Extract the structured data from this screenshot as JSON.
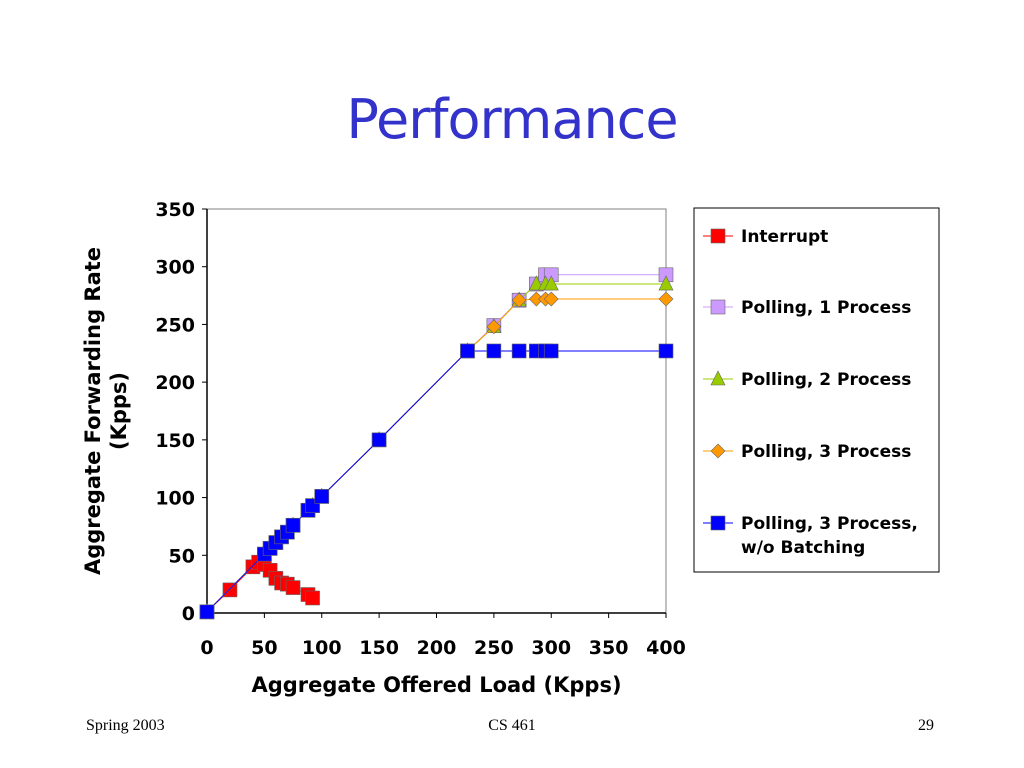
{
  "slide": {
    "title": "Performance",
    "footer_left": "Spring 2003",
    "footer_center": "CS 461",
    "footer_right": "29"
  },
  "chart_data": {
    "type": "line",
    "title": "",
    "xlabel": "Aggregate Offered Load (Kpps)",
    "ylabel": "Aggregate Forwarding Rate (Kpps)",
    "ylabel_lines": [
      "Aggregate Forwarding Rate",
      "(Kpps)"
    ],
    "xlim": [
      0,
      400
    ],
    "ylim": [
      0,
      350
    ],
    "xticks": [
      0,
      50,
      100,
      150,
      200,
      250,
      300,
      350,
      400
    ],
    "yticks": [
      0,
      50,
      100,
      150,
      200,
      250,
      300,
      350
    ],
    "grid": "horizontal",
    "legend_position": "right",
    "series": [
      {
        "name": "Interrupt",
        "color": "#ff0000",
        "marker": "square",
        "points": [
          [
            0,
            1
          ],
          [
            20,
            20
          ],
          [
            40,
            40
          ],
          [
            45,
            44
          ],
          [
            50,
            42
          ],
          [
            55,
            37
          ],
          [
            60,
            30
          ],
          [
            65,
            26
          ],
          [
            70,
            25
          ],
          [
            75,
            22
          ],
          [
            88,
            16
          ],
          [
            92,
            13
          ]
        ]
      },
      {
        "name": "Polling, 1 Process",
        "color": "#cc99ff",
        "marker": "square",
        "points": [
          [
            0,
            1
          ],
          [
            50,
            51
          ],
          [
            55,
            56
          ],
          [
            60,
            61
          ],
          [
            65,
            66
          ],
          [
            70,
            70
          ],
          [
            75,
            76
          ],
          [
            88,
            89
          ],
          [
            92,
            93
          ],
          [
            100,
            101
          ],
          [
            150,
            150
          ],
          [
            227,
            227
          ],
          [
            250,
            249
          ],
          [
            272,
            271
          ],
          [
            287,
            285
          ],
          [
            295,
            293
          ],
          [
            300,
            293
          ],
          [
            400,
            293
          ]
        ]
      },
      {
        "name": "Polling, 2 Process",
        "color": "#99cc00",
        "marker": "triangle",
        "points": [
          [
            0,
            1
          ],
          [
            50,
            51
          ],
          [
            55,
            56
          ],
          [
            60,
            61
          ],
          [
            65,
            66
          ],
          [
            70,
            70
          ],
          [
            75,
            76
          ],
          [
            88,
            89
          ],
          [
            92,
            93
          ],
          [
            100,
            101
          ],
          [
            150,
            150
          ],
          [
            227,
            227
          ],
          [
            250,
            248
          ],
          [
            272,
            271
          ],
          [
            287,
            285
          ],
          [
            295,
            285
          ],
          [
            300,
            285
          ],
          [
            400,
            285
          ]
        ]
      },
      {
        "name": "Polling, 3 Process",
        "color": "#ff9900",
        "marker": "diamond",
        "points": [
          [
            0,
            1
          ],
          [
            50,
            51
          ],
          [
            55,
            56
          ],
          [
            60,
            61
          ],
          [
            65,
            66
          ],
          [
            70,
            70
          ],
          [
            75,
            76
          ],
          [
            88,
            89
          ],
          [
            92,
            93
          ],
          [
            100,
            101
          ],
          [
            150,
            150
          ],
          [
            227,
            227
          ],
          [
            250,
            248
          ],
          [
            272,
            271
          ],
          [
            287,
            272
          ],
          [
            295,
            272
          ],
          [
            300,
            272
          ],
          [
            400,
            272
          ]
        ]
      },
      {
        "name": "Polling, 3 Process, w/o Batching",
        "legend_lines": [
          "Polling, 3 Process,",
          "w/o Batching"
        ],
        "color": "#0000ff",
        "marker": "square",
        "points": [
          [
            0,
            1
          ],
          [
            50,
            51
          ],
          [
            55,
            56
          ],
          [
            60,
            61
          ],
          [
            65,
            66
          ],
          [
            70,
            70
          ],
          [
            75,
            76
          ],
          [
            88,
            89
          ],
          [
            92,
            93
          ],
          [
            100,
            101
          ],
          [
            150,
            150
          ],
          [
            227,
            227
          ],
          [
            250,
            227
          ],
          [
            272,
            227
          ],
          [
            287,
            227
          ],
          [
            295,
            227
          ],
          [
            300,
            227
          ],
          [
            400,
            227
          ]
        ]
      }
    ]
  }
}
